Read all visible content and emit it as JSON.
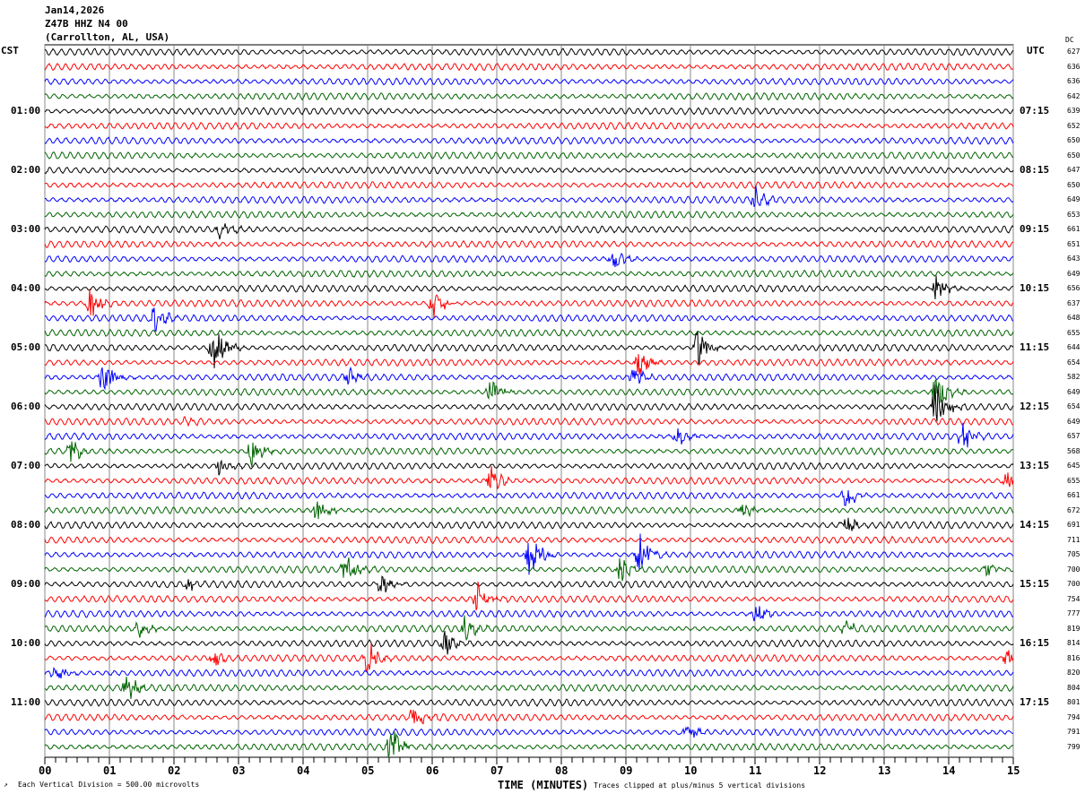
{
  "header": {
    "date": "Jan14,2026",
    "station": "Z47B HHZ N4 00",
    "location": "(Carrollton, AL, USA)"
  },
  "left_tz": "CST",
  "right_tz": "UTC",
  "dc_label": "DC",
  "footer": {
    "scale": "Each Vertical Division =  500.00 microvolts",
    "xlabel": "TIME (MINUTES)",
    "clip_note": "Traces clipped at plus/minus 5 vertical divisions"
  },
  "colors": {
    "trace_cycle": [
      "#000000",
      "#ff0000",
      "#0000ff",
      "#006400"
    ],
    "grid": "#888888"
  },
  "chart_data": {
    "type": "line",
    "title": "Z47B HHZ N4 00 helicorder",
    "xlabel": "TIME (MINUTES)",
    "xlim": [
      0,
      15
    ],
    "x_ticks": [
      "00",
      "01",
      "02",
      "03",
      "04",
      "05",
      "06",
      "07",
      "08",
      "09",
      "10",
      "11",
      "12",
      "13",
      "14",
      "15"
    ],
    "rows": 48,
    "left_labels": [
      "01:00",
      "02:00",
      "03:00",
      "04:00",
      "05:00",
      "06:00",
      "07:00",
      "08:00",
      "09:00",
      "10:00",
      "11:00"
    ],
    "right_labels": [
      "07:15",
      "08:15",
      "09:15",
      "10:15",
      "11:15",
      "12:15",
      "13:15",
      "14:15",
      "15:15",
      "16:15",
      "17:15"
    ],
    "dc_values": [
      "627",
      "636",
      "636",
      "642",
      "639",
      "652",
      "650",
      "650",
      "647",
      "650",
      "649",
      "653",
      "661",
      "651",
      "643",
      "649",
      "656",
      "637",
      "648",
      "655",
      "644",
      "654",
      "582",
      "649",
      "654",
      "649",
      "657",
      "568",
      "645",
      "655",
      "661",
      "672",
      "691",
      "711",
      "705",
      "700",
      "700",
      "754",
      "777",
      "819",
      "814",
      "816",
      "820",
      "804",
      "801",
      "794",
      "791",
      "799"
    ],
    "events": [
      [
        10,
        11.0,
        14
      ],
      [
        12,
        2.7,
        10
      ],
      [
        14,
        8.8,
        14
      ],
      [
        16,
        13.8,
        16
      ],
      [
        17,
        0.7,
        18
      ],
      [
        17,
        6.0,
        20
      ],
      [
        18,
        1.7,
        14
      ],
      [
        20,
        2.6,
        34
      ],
      [
        20,
        10.1,
        22
      ],
      [
        21,
        9.2,
        16
      ],
      [
        22,
        0.9,
        20
      ],
      [
        22,
        4.7,
        10
      ],
      [
        22,
        9.1,
        14
      ],
      [
        23,
        6.9,
        14
      ],
      [
        23,
        13.8,
        26
      ],
      [
        24,
        13.8,
        30
      ],
      [
        25,
        2.2,
        5
      ],
      [
        26,
        9.8,
        12
      ],
      [
        26,
        14.2,
        18
      ],
      [
        27,
        0.4,
        16
      ],
      [
        27,
        3.2,
        22
      ],
      [
        28,
        2.7,
        10
      ],
      [
        29,
        6.9,
        18
      ],
      [
        29,
        14.9,
        10
      ],
      [
        30,
        12.4,
        16
      ],
      [
        31,
        4.2,
        14
      ],
      [
        31,
        10.8,
        10
      ],
      [
        32,
        12.4,
        12
      ],
      [
        34,
        7.5,
        30
      ],
      [
        34,
        9.2,
        30
      ],
      [
        35,
        4.65,
        18
      ],
      [
        35,
        8.9,
        14
      ],
      [
        35,
        14.6,
        8
      ],
      [
        36,
        2.2,
        8
      ],
      [
        36,
        5.2,
        12
      ],
      [
        37,
        6.7,
        22
      ],
      [
        38,
        11.0,
        14
      ],
      [
        39,
        1.45,
        10
      ],
      [
        39,
        6.5,
        14
      ],
      [
        39,
        12.4,
        8
      ],
      [
        40,
        6.2,
        14
      ],
      [
        41,
        2.6,
        10
      ],
      [
        41,
        5.0,
        20
      ],
      [
        41,
        14.9,
        10
      ],
      [
        42,
        0.15,
        10
      ],
      [
        43,
        1.25,
        18
      ],
      [
        45,
        5.7,
        14
      ],
      [
        46,
        9.9,
        12
      ],
      [
        47,
        5.35,
        28
      ]
    ]
  }
}
